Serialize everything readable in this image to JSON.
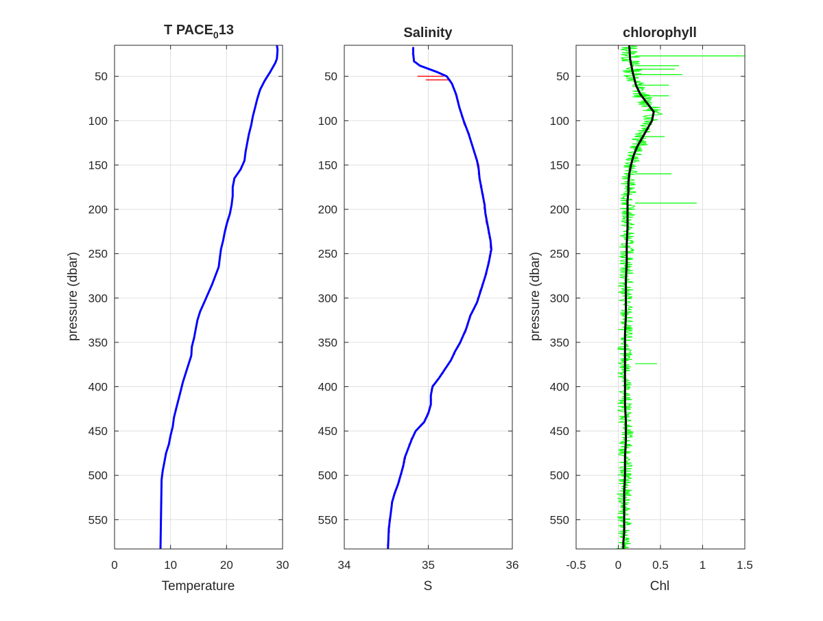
{
  "chart_data": [
    {
      "type": "line",
      "title": "T PACE",
      "title_sub": "0",
      "title_suffix": "13",
      "xlabel": "Temperature",
      "ylabel": "pressure (dbar)",
      "xlim": [
        0,
        30
      ],
      "ylim": [
        15,
        583
      ],
      "y_reversed": true,
      "xticks": [
        0,
        10,
        20,
        30
      ],
      "xtick_labels": [
        "0",
        "10",
        "20",
        "30"
      ],
      "yticks": [
        50,
        100,
        150,
        200,
        250,
        300,
        350,
        400,
        450,
        500,
        550
      ],
      "ytick_labels": [
        "50",
        "100",
        "150",
        "200",
        "250",
        "300",
        "350",
        "400",
        "450",
        "500",
        "550"
      ],
      "grid": true,
      "colors": {
        "main": "#0000ff"
      },
      "series": [
        {
          "x": [
            29.0,
            29.1,
            29.0,
            28.7,
            27.8,
            26.8,
            26.0,
            25.5,
            25.1,
            24.7,
            24.4,
            24.0,
            23.7,
            23.4,
            23.2,
            22.5,
            21.4,
            21.1,
            21.1,
            20.9,
            20.6,
            20.1,
            19.7,
            19.4,
            19.0,
            18.8,
            18.6,
            18.0,
            17.4,
            16.7,
            16.0,
            15.3,
            14.8,
            14.5,
            14.2,
            13.8,
            13.7,
            13.2,
            12.7,
            12.2,
            11.8,
            11.4,
            11.0,
            10.6,
            10.4,
            10.0,
            9.7,
            9.2,
            8.9,
            8.6,
            8.4,
            8.2
          ],
          "y": [
            15,
            20,
            30,
            35,
            45,
            55,
            65,
            75,
            85,
            95,
            105,
            115,
            125,
            135,
            145,
            155,
            165,
            175,
            185,
            195,
            205,
            215,
            225,
            235,
            245,
            255,
            265,
            275,
            285,
            295,
            305,
            315,
            325,
            335,
            345,
            355,
            365,
            375,
            385,
            395,
            405,
            415,
            425,
            435,
            445,
            455,
            465,
            475,
            485,
            495,
            505,
            583
          ]
        }
      ]
    },
    {
      "type": "line",
      "title": "Salinity",
      "xlabel": "S",
      "ylabel": "",
      "xlim": [
        34,
        36
      ],
      "ylim": [
        15,
        583
      ],
      "y_reversed": true,
      "xticks": [
        34,
        35,
        36
      ],
      "xtick_labels": [
        "34",
        "35",
        "36"
      ],
      "yticks": [
        50,
        100,
        150,
        200,
        250,
        300,
        350,
        400,
        450,
        500,
        550
      ],
      "ytick_labels": [
        "50",
        "100",
        "150",
        "200",
        "250",
        "300",
        "350",
        "400",
        "450",
        "500",
        "550"
      ],
      "grid": true,
      "colors": {
        "main": "#0000ff",
        "raw": "#ff0000"
      },
      "series": [
        {
          "x": [
            34.82,
            34.82,
            34.83,
            34.9,
            35.1,
            35.22,
            35.28,
            35.33,
            35.37,
            35.42,
            35.48,
            35.53,
            35.58,
            35.6,
            35.61,
            35.63,
            35.65,
            35.67,
            35.68,
            35.7,
            35.72,
            35.74,
            35.75,
            35.72,
            35.68,
            35.63,
            35.58,
            35.5,
            35.45,
            35.38,
            35.32,
            35.27,
            35.2,
            35.13,
            35.05,
            35.03,
            35.03,
            35.0,
            34.95,
            34.85,
            34.8,
            34.76,
            34.72,
            34.7,
            34.67,
            34.64,
            34.6,
            34.57,
            34.55,
            34.53,
            34.52
          ],
          "y": [
            17,
            25,
            33,
            38,
            45,
            50,
            58,
            70,
            85,
            100,
            115,
            130,
            145,
            155,
            165,
            175,
            185,
            195,
            205,
            215,
            225,
            235,
            245,
            260,
            275,
            290,
            305,
            320,
            335,
            350,
            360,
            370,
            380,
            390,
            400,
            410,
            420,
            430,
            440,
            450,
            460,
            470,
            480,
            490,
            500,
            510,
            520,
            530,
            545,
            560,
            583
          ]
        }
      ]
    },
    {
      "type": "line",
      "title": "chlorophyll",
      "xlabel": "Chl",
      "ylabel": "pressure (dbar)",
      "xlim": [
        -0.5,
        1.5
      ],
      "ylim": [
        15,
        583
      ],
      "y_reversed": true,
      "xticks": [
        -0.5,
        0,
        0.5,
        1,
        1.5
      ],
      "xtick_labels": [
        "-0.5",
        "0",
        "0.5",
        "1",
        "1.5"
      ],
      "yticks": [
        50,
        100,
        150,
        200,
        250,
        300,
        350,
        400,
        450,
        500,
        550
      ],
      "ytick_labels": [
        "50",
        "100",
        "150",
        "200",
        "250",
        "300",
        "350",
        "400",
        "450",
        "500",
        "550"
      ],
      "grid": true,
      "colors": {
        "smooth": "#000000",
        "raw": "#00ff00"
      },
      "series": [
        {
          "x": [
            0.13,
            0.14,
            0.17,
            0.21,
            0.26,
            0.34,
            0.42,
            0.4,
            0.34,
            0.28,
            0.22,
            0.18,
            0.15,
            0.13,
            0.12,
            0.12,
            0.11,
            0.11,
            0.11,
            0.1,
            0.1,
            0.09,
            0.09,
            0.09,
            0.08,
            0.08,
            0.08,
            0.08,
            0.08,
            0.09,
            0.09,
            0.08,
            0.08,
            0.07,
            0.07,
            0.07,
            0.07,
            0.06,
            0.06
          ],
          "y": [
            15,
            30,
            45,
            60,
            70,
            80,
            90,
            100,
            110,
            120,
            130,
            140,
            150,
            160,
            170,
            180,
            190,
            200,
            220,
            240,
            260,
            280,
            300,
            320,
            340,
            360,
            380,
            400,
            420,
            440,
            460,
            480,
            500,
            520,
            540,
            555,
            565,
            575,
            583
          ]
        }
      ],
      "spikes": [
        {
          "y": 27,
          "x": 1.5
        },
        {
          "y": 38,
          "x": 0.72
        },
        {
          "y": 42,
          "x": 0.67
        },
        {
          "y": 48,
          "x": 0.76
        },
        {
          "y": 60,
          "x": 0.6
        },
        {
          "y": 72,
          "x": 0.6
        },
        {
          "y": 118,
          "x": 0.55
        },
        {
          "y": 160,
          "x": 0.63
        },
        {
          "y": 193,
          "x": 0.93
        },
        {
          "y": 374,
          "x": 0.46
        }
      ]
    }
  ]
}
